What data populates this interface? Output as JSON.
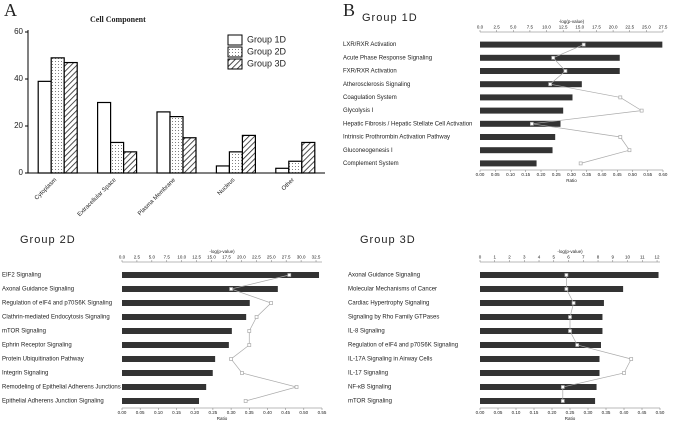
{
  "chart_data": [
    {
      "type": "bar",
      "label": "A",
      "title": "Cell Component",
      "categories": [
        "Cytoplasm",
        "Extracellular Space",
        "Plasma Membrane",
        "Nucleus",
        "Other"
      ],
      "series": [
        {
          "name": "Group 1D",
          "pattern": "solid",
          "color": "#ffffff",
          "values": [
            39,
            30,
            26,
            3,
            2
          ]
        },
        {
          "name": "Group 2D",
          "pattern": "dots",
          "color": "#ffffff",
          "values": [
            49,
            13,
            24,
            9,
            5
          ]
        },
        {
          "name": "Group 3D",
          "pattern": "hatch",
          "color": "#ffffff",
          "values": [
            47,
            9,
            15,
            16,
            13
          ]
        }
      ],
      "ylim": [
        0,
        60
      ],
      "yticks": [
        0,
        20,
        40,
        60
      ],
      "legend": "top-right"
    },
    {
      "type": "hbar-line",
      "label": "B",
      "title": "Group 1D",
      "categories": [
        "LXR/RXR Activation",
        "Acute Phase Response Signaling",
        "FXR/RXR Activation",
        "Atherosclerosis Signaling",
        "Coagulation System",
        "Glycolysis I",
        "Hepatic Fibrosis / Hepatic Stellate Cell Activation",
        "Intrinsic Prothrombin Activation Pathway",
        "Gluconeogenesis I",
        "Complement System"
      ],
      "bar_values": [
        27.4,
        21.0,
        21.0,
        15.3,
        13.9,
        12.5,
        12.1,
        11.3,
        10.9,
        8.5
      ],
      "line_values": [
        0.34,
        0.24,
        0.28,
        0.23,
        0.46,
        0.53,
        0.17,
        0.46,
        0.49,
        0.33
      ],
      "bar_color": "#333333",
      "line_color": "#aaaaaa",
      "x2label": "-log(p-value)",
      "x2lim": [
        0,
        27.5
      ],
      "x2ticks": [
        {
          "value": 0,
          "label": "0.0"
        },
        2.5,
        {
          "value": 5,
          "label": "5.0"
        },
        7.5,
        {
          "value": 10,
          "label": "10.0"
        },
        12.5,
        {
          "value": 15,
          "label": "15.0"
        },
        17.5,
        {
          "value": 20,
          "label": "20.0"
        },
        22.5,
        {
          "value": 25,
          "label": "25.0"
        },
        27.5
      ],
      "xlabel": "Ratio",
      "xlim": [
        0,
        0.6
      ],
      "xticks": [
        {
          "value": 0,
          "label": "0.00"
        },
        0.05,
        {
          "value": 0.1,
          "label": "0.10"
        },
        0.15,
        {
          "value": 0.2,
          "label": "0.20"
        },
        0.25,
        {
          "value": 0.3,
          "label": "0.30"
        },
        0.35,
        {
          "value": 0.4,
          "label": "0.40"
        },
        0.45,
        {
          "value": 0.5,
          "label": "0.50"
        },
        0.55,
        {
          "value": 0.6,
          "label": "0.60"
        }
      ]
    },
    {
      "type": "hbar-line",
      "title": "Group 2D",
      "categories": [
        "EIF2 Signaling",
        "Axonal Guidance Signaling",
        "Regulation of eIF4 and p70S6K Signaling",
        "Clathrin-mediated Endocytosis Signaling",
        "mTOR Signaling",
        "Ephrin Receptor Signaling",
        "Protein Ubiquitination Pathway",
        "Integrin Signaling",
        "Remodeling of Epithelial Adherens Junctions",
        "Epithelial Adherens Junction Signaling"
      ],
      "bar_values": [
        33.0,
        26.1,
        21.4,
        20.8,
        18.4,
        17.9,
        15.6,
        15.2,
        14.1,
        12.9
      ],
      "line_values": [
        0.46,
        0.3,
        0.41,
        0.37,
        0.35,
        0.35,
        0.3,
        0.33,
        0.48,
        0.34
      ],
      "bar_color": "#333333",
      "line_color": "#aaaaaa",
      "x2label": "-log(p-value)",
      "x2lim": [
        0,
        33.5
      ],
      "x2ticks": [
        {
          "value": 0,
          "label": "0.0"
        },
        2.5,
        {
          "value": 5,
          "label": "5.0"
        },
        7.5,
        {
          "value": 10,
          "label": "10.0"
        },
        12.5,
        {
          "value": 15,
          "label": "15.0"
        },
        17.5,
        {
          "value": 20,
          "label": "20.0"
        },
        22.5,
        {
          "value": 25,
          "label": "25.0"
        },
        27.5,
        {
          "value": 30,
          "label": "30.0"
        },
        32.5
      ],
      "xlabel": "Ratio",
      "xlim": [
        0,
        0.55
      ],
      "xticks": [
        {
          "value": 0,
          "label": "0.00"
        },
        0.05,
        {
          "value": 0.1,
          "label": "0.10"
        },
        0.15,
        {
          "value": 0.2,
          "label": "0.20"
        },
        0.25,
        {
          "value": 0.3,
          "label": "0.30"
        },
        0.35,
        {
          "value": 0.4,
          "label": "0.40"
        },
        0.45,
        {
          "value": 0.5,
          "label": "0.50"
        },
        0.55
      ]
    },
    {
      "type": "hbar-line",
      "title": "Group 3D",
      "categories": [
        "Axonal Guidance Signaling",
        "Molecular Mechanisms of Cancer",
        "Cardiac Hypertrophy Signaling",
        "Signaling by Rho Family GTPases",
        "IL-8 Signaling",
        "Regulation of eIF4 and p70S6K Signaling",
        "IL-17A Signaling in Airway Cells",
        "IL-17 Signaling",
        "NF-κB Signaling",
        "mTOR Signaling"
      ],
      "bar_values": [
        12.1,
        9.7,
        8.4,
        8.3,
        8.3,
        8.2,
        8.1,
        8.1,
        7.9,
        7.8
      ],
      "line_values": [
        0.24,
        0.24,
        0.26,
        0.25,
        0.25,
        0.27,
        0.42,
        0.4,
        0.23,
        0.23
      ],
      "bar_color": "#333333",
      "line_color": "#aaaaaa",
      "x2label": "-log(p-value)",
      "x2lim": [
        0,
        12.2
      ],
      "x2ticks": [
        0,
        1,
        2,
        3,
        4,
        5,
        6,
        7,
        8,
        9,
        10,
        11,
        12
      ],
      "xlabel": "Ratio",
      "xlim": [
        0,
        0.5
      ],
      "xticks": [
        {
          "value": 0,
          "label": "0.00"
        },
        0.05,
        {
          "value": 0.1,
          "label": "0.10"
        },
        0.15,
        {
          "value": 0.2,
          "label": "0.20"
        },
        0.25,
        {
          "value": 0.3,
          "label": "0.30"
        },
        0.35,
        {
          "value": 0.4,
          "label": "0.40"
        },
        0.45,
        {
          "value": 0.5,
          "label": "0.50"
        }
      ]
    }
  ]
}
